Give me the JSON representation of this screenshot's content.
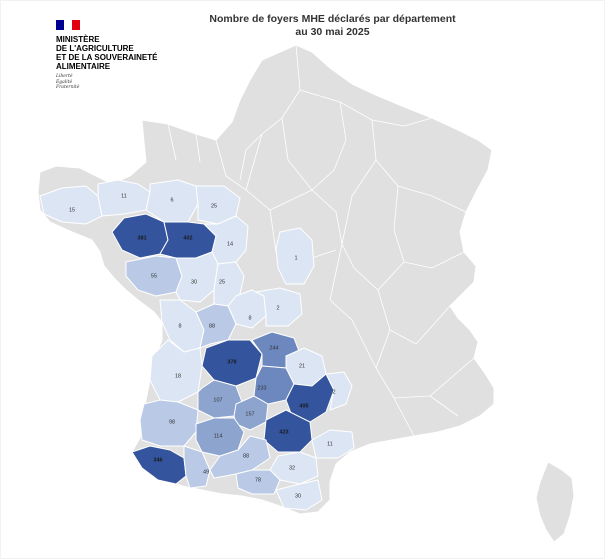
{
  "title": {
    "line1": "Nombre de foyers MHE déclarés par département",
    "line2": "au 30 mai 2025"
  },
  "logo": {
    "flag_colors": [
      "#000091",
      "#ffffff",
      "#e1000f"
    ],
    "ministry_lines": [
      "MINISTÈRE",
      "DE L'AGRICULTURE",
      "ET DE LA SOUVERAINETÉ",
      "ALIMENTAIRE"
    ],
    "motto_lines": [
      "Liberté",
      "Égalité",
      "Fraternité"
    ]
  },
  "colors": {
    "unaffected": "#e0e0e0",
    "scale_1": "#dce5f3",
    "scale_2": "#b9c9e6",
    "scale_3": "#8da4cf",
    "scale_4": "#6d87bf",
    "scale_5": "#34559e"
  },
  "departments": [
    {
      "id": "finistere",
      "value": "15",
      "level": 1
    },
    {
      "id": "cotes-darmor",
      "value": "11",
      "level": 1
    },
    {
      "id": "ille-et-vilaine",
      "value": "6",
      "level": 1
    },
    {
      "id": "mayenne",
      "value": "25",
      "level": 1
    },
    {
      "id": "morbihan",
      "value": "381",
      "level": 5
    },
    {
      "id": "loire-atlantique",
      "value": "402",
      "level": 5
    },
    {
      "id": "maine-et-loire",
      "value": "14",
      "level": 1
    },
    {
      "id": "vendee",
      "value": "55",
      "level": 2
    },
    {
      "id": "deux-sevres",
      "value": "30",
      "level": 1
    },
    {
      "id": "vienne",
      "value": "25",
      "level": 1
    },
    {
      "id": "indre",
      "value": "8",
      "level": 1
    },
    {
      "id": "cher",
      "value": "2",
      "level": 1
    },
    {
      "id": "nievre",
      "value": "1",
      "level": 1
    },
    {
      "id": "charente-maritime",
      "value": "8",
      "level": 1
    },
    {
      "id": "charente",
      "value": "88",
      "level": 2
    },
    {
      "id": "dordogne",
      "value": "378",
      "level": 5
    },
    {
      "id": "correze",
      "value": "244",
      "level": 4
    },
    {
      "id": "cantal",
      "value": "21",
      "level": 1
    },
    {
      "id": "gironde",
      "value": "18",
      "level": 1
    },
    {
      "id": "lot",
      "value": "233",
      "level": 4
    },
    {
      "id": "aveyron",
      "value": "405",
      "level": 5
    },
    {
      "id": "lozere",
      "value": "2",
      "level": 1
    },
    {
      "id": "lot-et-garonne",
      "value": "107",
      "level": 3
    },
    {
      "id": "tarn-et-garonne",
      "value": "157",
      "level": 3
    },
    {
      "id": "tarn",
      "value": "423",
      "level": 5
    },
    {
      "id": "landes",
      "value": "98",
      "level": 2
    },
    {
      "id": "gers",
      "value": "114",
      "level": 3
    },
    {
      "id": "herault",
      "value": "11",
      "level": 1
    },
    {
      "id": "pyrenees-atlantiques",
      "value": "346",
      "level": 5
    },
    {
      "id": "hautes-pyrenees",
      "value": "49",
      "level": 2
    },
    {
      "id": "haute-garonne",
      "value": "88",
      "level": 2
    },
    {
      "id": "aude",
      "value": "32",
      "level": 1
    },
    {
      "id": "ariege",
      "value": "78",
      "level": 2
    },
    {
      "id": "pyrenees-orientales",
      "value": "30",
      "level": 1
    }
  ]
}
